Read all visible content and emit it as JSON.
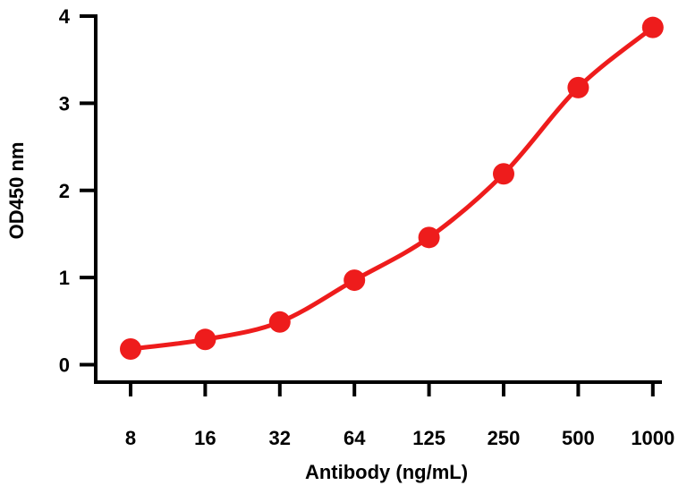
{
  "chart_data": {
    "type": "line",
    "x_label": "Antibody (ng/mL)",
    "y_label": "OD450 nm",
    "categories": [
      "8",
      "16",
      "32",
      "64",
      "125",
      "250",
      "500",
      "1000"
    ],
    "series": [
      {
        "color": "#ee1c1c",
        "values": [
          0.18,
          0.29,
          0.49,
          0.97,
          1.46,
          2.19,
          3.18,
          3.87
        ]
      }
    ],
    "ylim": [
      -0.2,
      4
    ],
    "yticks": [
      0,
      1,
      2,
      3,
      4
    ]
  }
}
